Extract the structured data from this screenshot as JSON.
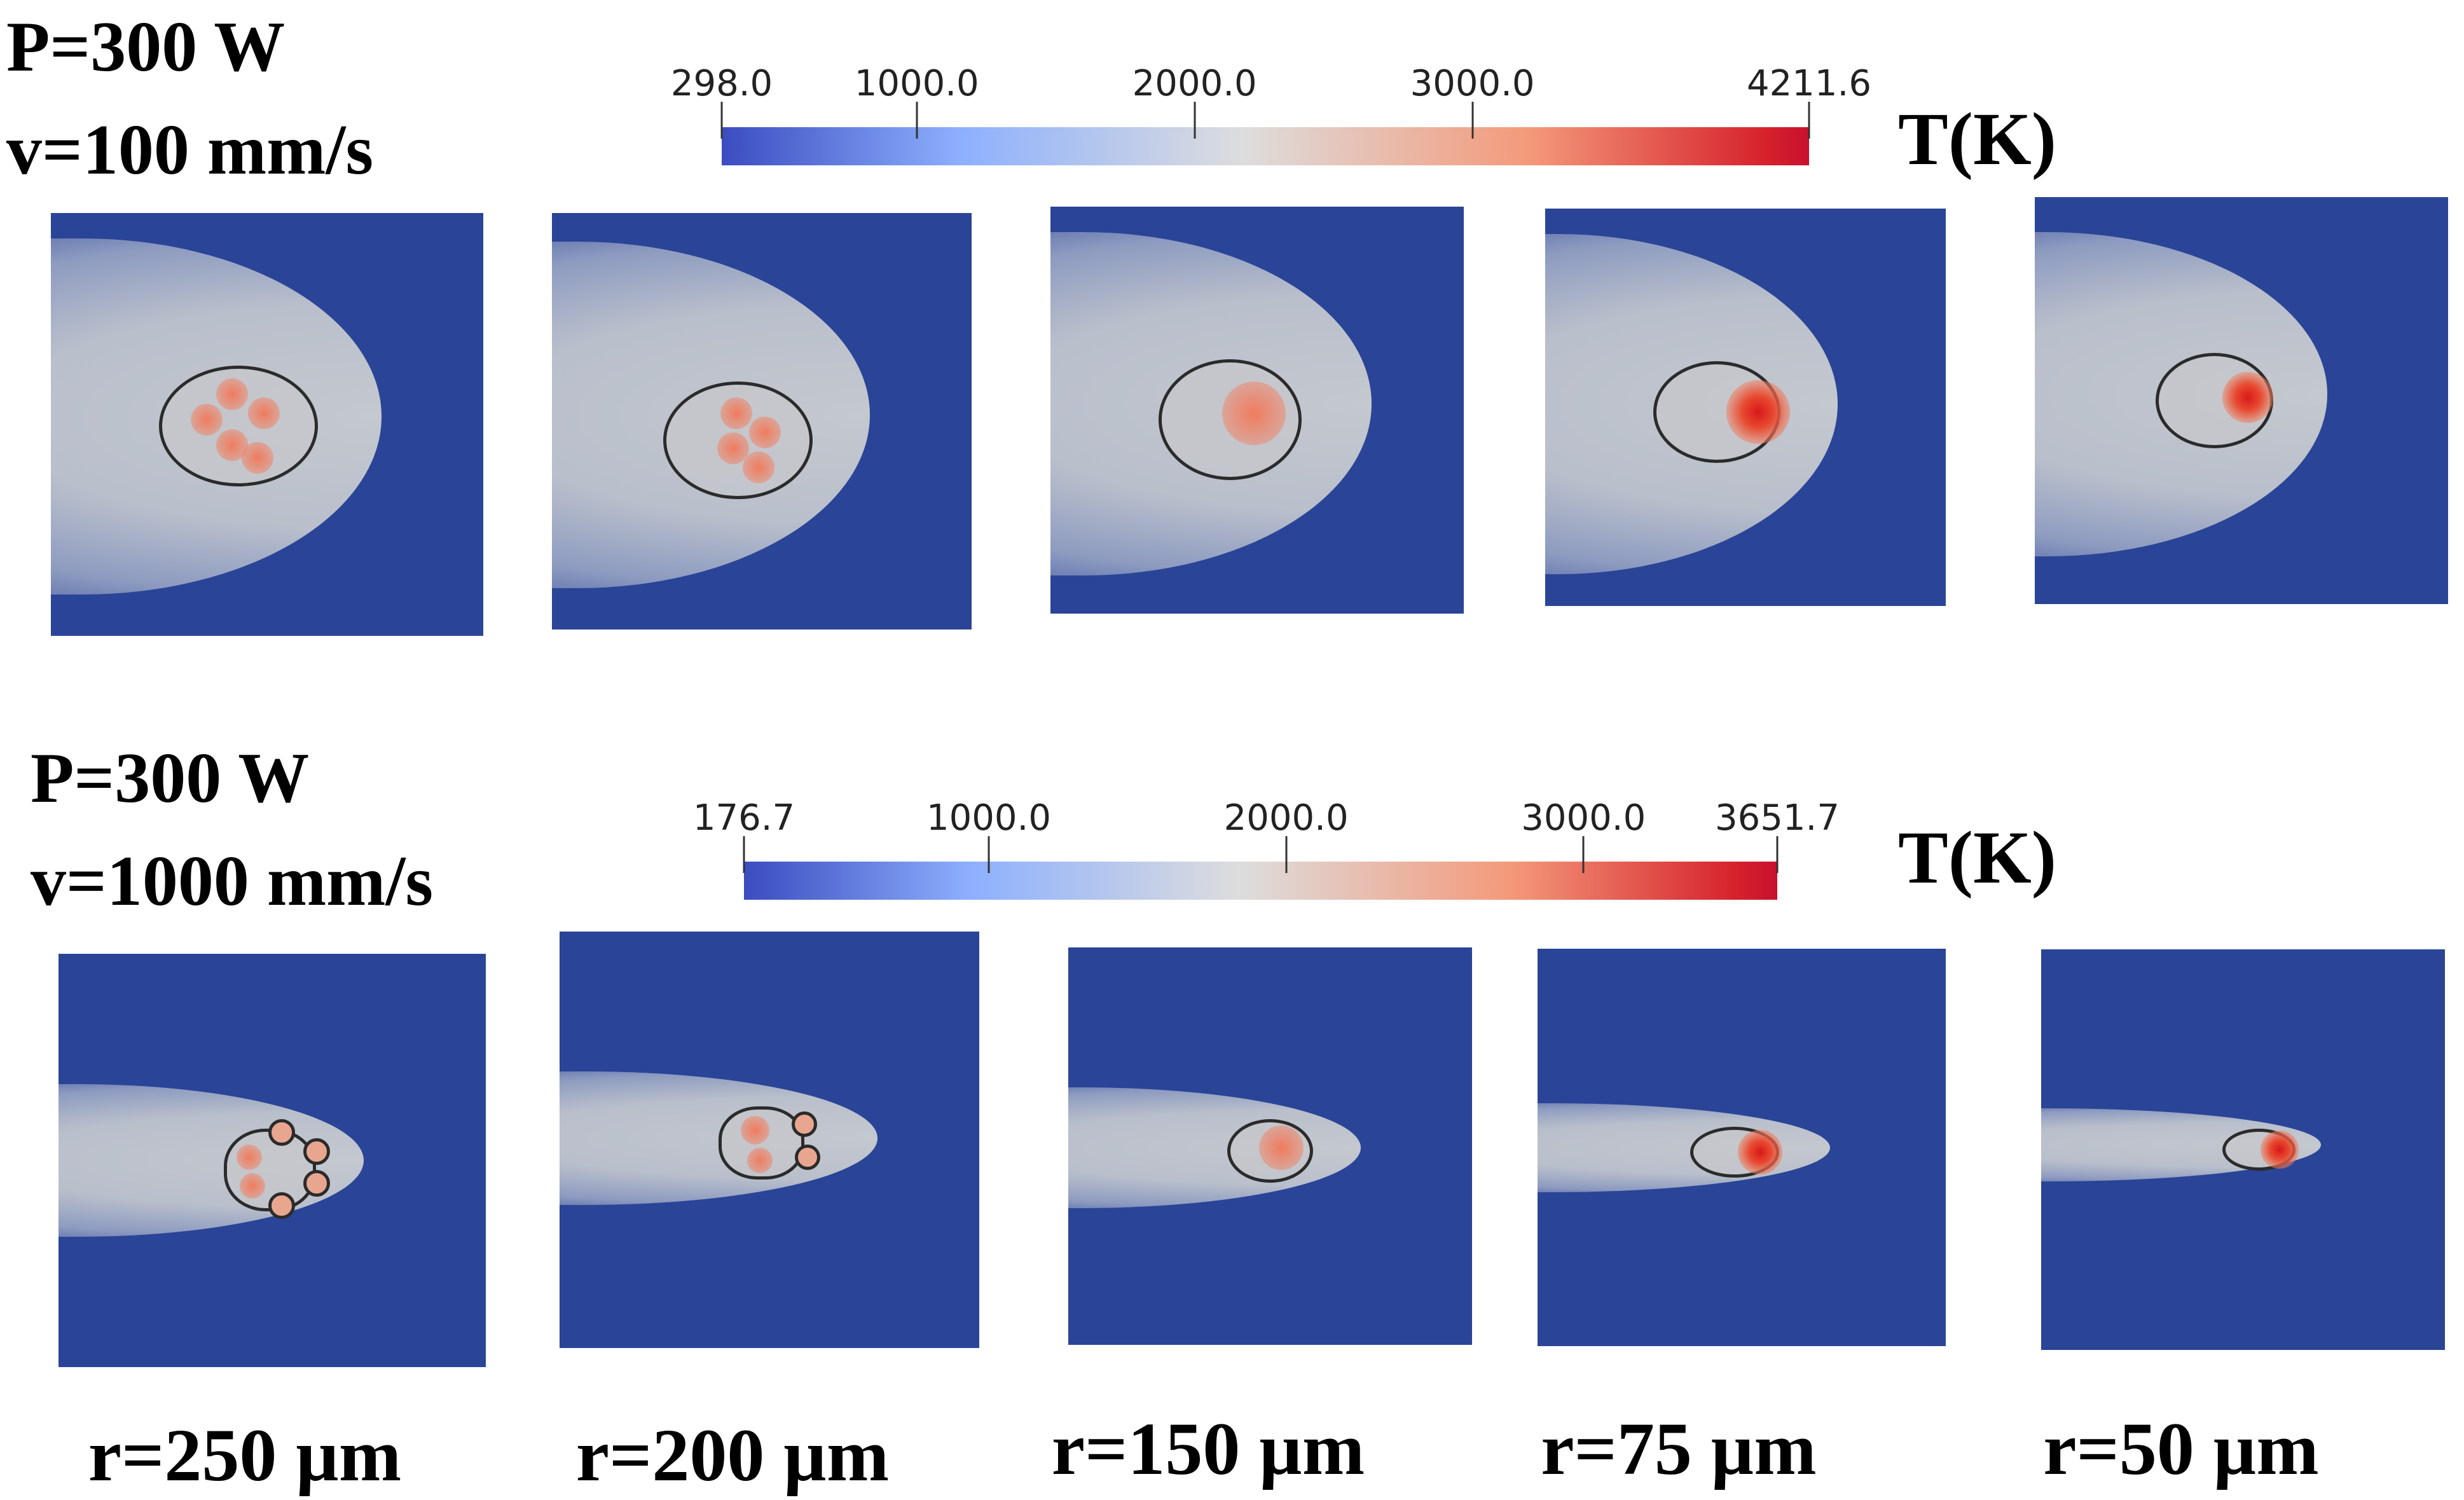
{
  "chart_data": {
    "type": "heatmap",
    "quantity": "T(K)",
    "rows": [
      {
        "power": "P=300 W",
        "speed": "v=100 mm/s",
        "colorbar": {
          "min": 298.0,
          "max": 4211.6,
          "ticks": [
            "298.0",
            "1000.0",
            "2000.0",
            "3000.0",
            "4211.6"
          ],
          "tick_values": [
            298.0,
            1000.0,
            2000.0,
            3000.0,
            4211.6
          ],
          "unit_label": "T(K)"
        }
      },
      {
        "power": "P=300 W",
        "speed": "v=1000 mm/s",
        "colorbar": {
          "min": 176.7,
          "max": 3651.7,
          "ticks": [
            "176.7",
            "1000.0",
            "2000.0",
            "3000.0",
            "3651.7"
          ],
          "tick_values": [
            176.7,
            1000.0,
            2000.0,
            3000.0,
            3651.7
          ],
          "unit_label": "T(K)"
        }
      }
    ],
    "columns": [
      "r=250 µm",
      "r=200 µm",
      "r=150 µm",
      "r=75 µm",
      "r=50 µm"
    ],
    "colormap": [
      "#3b4cc0",
      "#dddddd",
      "#c8102e"
    ]
  }
}
